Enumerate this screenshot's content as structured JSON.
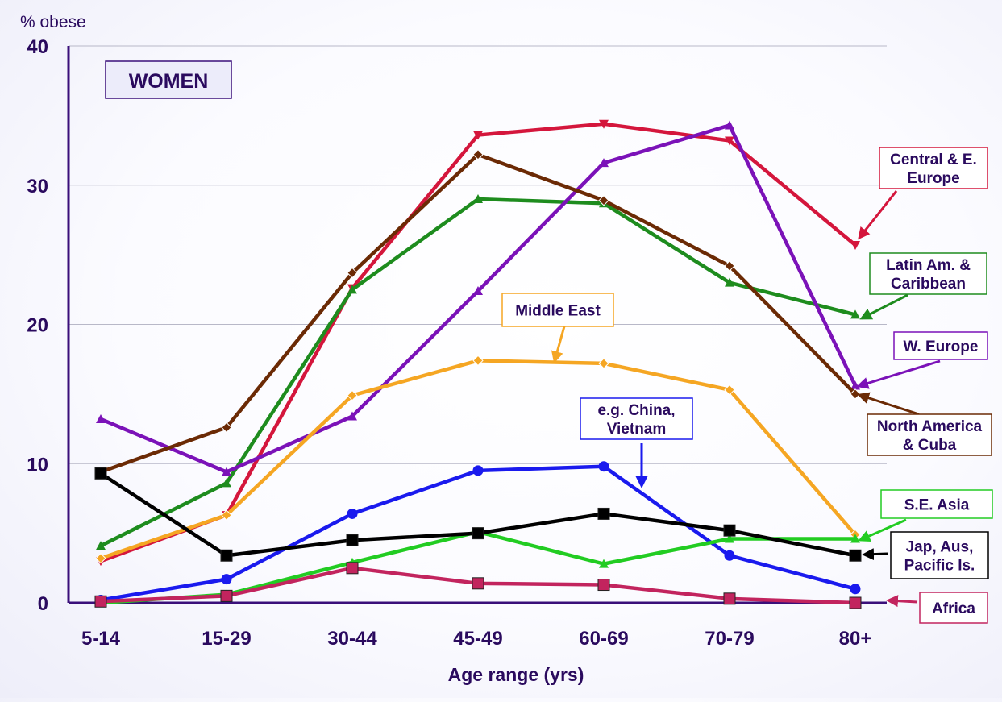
{
  "chart_data": {
    "type": "line",
    "ylabel": "% obese",
    "xlabel": "Age range (yrs)",
    "ylim": [
      0,
      40
    ],
    "yticks": [
      0,
      10,
      20,
      30,
      40
    ],
    "grid": true,
    "categories": [
      "5-14",
      "15-29",
      "30-44",
      "45-49",
      "60-69",
      "70-79",
      "80+"
    ],
    "panel_label": "WOMEN",
    "series": [
      {
        "name": "Central & E. Europe",
        "color": "#d4163c",
        "marker": "triangle-down",
        "values": [
          3.0,
          6.3,
          22.6,
          33.6,
          34.4,
          33.2,
          25.7
        ]
      },
      {
        "name": "Latin Am. & Caribbean",
        "color": "#1e8c1e",
        "marker": "triangle-up",
        "values": [
          4.1,
          8.6,
          22.5,
          29.0,
          28.7,
          23.0,
          20.7
        ]
      },
      {
        "name": "W. Europe",
        "color": "#7b12b8",
        "marker": "triangle-up",
        "values": [
          13.2,
          9.4,
          13.4,
          22.4,
          31.6,
          34.3,
          15.6
        ]
      },
      {
        "name": "North America & Cuba",
        "color": "#6b2a05",
        "marker": "diamond",
        "values": [
          9.4,
          12.6,
          23.7,
          32.2,
          28.9,
          24.2,
          15.0
        ]
      },
      {
        "name": "Middle East",
        "color": "#f5a623",
        "marker": "diamond",
        "values": [
          3.2,
          6.3,
          14.9,
          17.4,
          17.2,
          15.3,
          4.9
        ]
      },
      {
        "name": "e.g. China, Vietnam",
        "color": "#1a1aee",
        "marker": "circle",
        "values": [
          0.2,
          1.7,
          6.4,
          9.5,
          9.8,
          3.4,
          1.0
        ]
      },
      {
        "name": "S.E. Asia",
        "color": "#22cc22",
        "marker": "triangle-up",
        "values": [
          0.0,
          0.6,
          2.9,
          5.1,
          2.8,
          4.6,
          4.6
        ]
      },
      {
        "name": "Jap, Aus, Pacific Is.",
        "color": "#000000",
        "marker": "square",
        "values": [
          9.3,
          3.4,
          4.5,
          5.0,
          6.4,
          5.2,
          3.4
        ]
      },
      {
        "name": "Africa",
        "color": "#c2245e",
        "marker": "square",
        "values": [
          0.1,
          0.5,
          2.5,
          1.4,
          1.3,
          0.3,
          0.0
        ]
      }
    ],
    "annotations": [
      {
        "series": 0,
        "lines": [
          "Central & E.",
          "Europe"
        ]
      },
      {
        "series": 1,
        "lines": [
          "Latin Am. &",
          "Caribbean"
        ]
      },
      {
        "series": 2,
        "lines": [
          "W. Europe"
        ]
      },
      {
        "series": 3,
        "lines": [
          "North America",
          "& Cuba"
        ]
      },
      {
        "series": 4,
        "lines": [
          "Middle East"
        ]
      },
      {
        "series": 5,
        "lines": [
          "e.g. China,",
          "Vietnam"
        ]
      },
      {
        "series": 6,
        "lines": [
          "S.E. Asia"
        ]
      },
      {
        "series": 7,
        "lines": [
          "Jap, Aus,",
          "Pacific Is."
        ]
      },
      {
        "series": 8,
        "lines": [
          "Africa"
        ]
      }
    ]
  }
}
